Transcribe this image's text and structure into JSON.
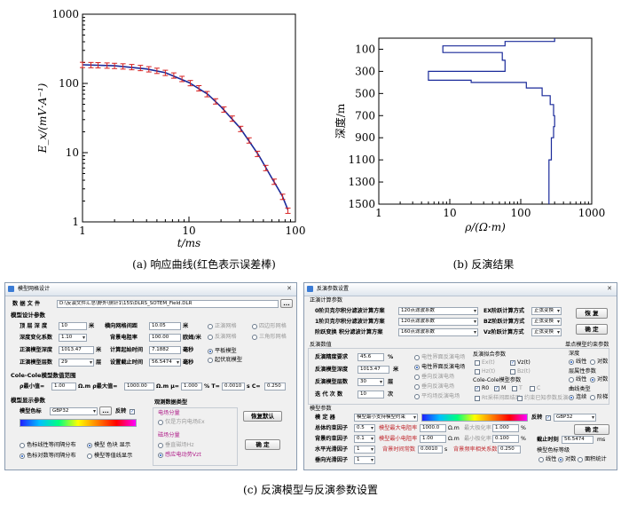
{
  "chart_data": [
    {
      "type": "scatter",
      "title": "",
      "xlabel": "t/ms",
      "ylabel": "E_x/(mV·A⁻¹)",
      "x_scale": "log",
      "y_scale": "log",
      "xlim": [
        1,
        100
      ],
      "ylim": [
        1,
        1000
      ],
      "xticks": [
        "1",
        "10",
        "100"
      ],
      "yticks": [
        "1",
        "10",
        "100",
        "1000"
      ],
      "grid": false,
      "series": [
        {
          "style": "observed data with error bars (red)",
          "x": [
            1.0,
            1.2,
            1.4,
            1.7,
            2.0,
            2.4,
            2.9,
            3.5,
            4.2,
            5.0,
            6.0,
            7.2,
            8.6,
            10.3,
            12.4,
            14.8,
            17.8,
            21.3,
            25.5,
            30.6,
            36.7,
            44.0,
            52.7,
            63.2,
            75.8,
            85.0
          ],
          "y": [
            185,
            184,
            183,
            181,
            179,
            176,
            172,
            167,
            160,
            152,
            142,
            130,
            116,
            101,
            85,
            70,
            55,
            42,
            31,
            22,
            15,
            9.6,
            6.0,
            3.8,
            2.3,
            1.45
          ]
        },
        {
          "style": "model response curve (blue)",
          "x": [
            1.0,
            2.0,
            4.0,
            6.0,
            10.0,
            15.0,
            20.0,
            30.0,
            45.0,
            60.0,
            75.0,
            85.0
          ],
          "y": [
            186,
            180,
            162,
            143,
            103,
            70,
            46,
            23,
            9.3,
            4.3,
            2.4,
            1.5
          ]
        }
      ]
    },
    {
      "type": "line",
      "title": "",
      "xlabel": "ρ/(Ω·m)",
      "ylabel": "深度/m",
      "x_scale": "log",
      "xlim": [
        1,
        1000
      ],
      "ylim": [
        1500,
        0
      ],
      "xticks": [
        "1",
        "10",
        "100",
        "1000"
      ],
      "yticks": [
        "100",
        "300",
        "500",
        "700",
        "900",
        "1100",
        "1300",
        "1500"
      ],
      "grid": false,
      "series": [
        {
          "style": "inverted resistivity profile (blue step line)",
          "x": [
            300,
            300,
            60,
            60,
            8,
            8,
            55,
            55,
            60,
            60,
            5,
            5,
            20,
            20,
            120,
            120,
            200,
            200,
            260,
            260,
            290,
            290,
            300,
            300,
            290,
            290,
            270,
            270,
            250,
            250
          ],
          "y": [
            0,
            30,
            30,
            70,
            70,
            130,
            130,
            200,
            200,
            300,
            300,
            380,
            380,
            400,
            400,
            450,
            450,
            520,
            520,
            600,
            600,
            700,
            700,
            800,
            800,
            900,
            900,
            1100,
            1100,
            1500
          ]
        }
      ]
    }
  ],
  "captions": {
    "a": "(a) 响应曲线(红色表示误差棒)",
    "b": "(b) 反演结果",
    "c": "(c) 反演模型与反演参数设置"
  },
  "left_dialog": {
    "title": "模型网格设计",
    "data_file_label": "数 据 文 件",
    "data_file_path": "D:\\反演文件汇总\\野外\\侧针1\\15S\\DLRS_SOTEM_Field.DLR",
    "browse": "...",
    "model_params_header": "模型设计参数",
    "top_depth_label": "顶 层 深 度",
    "top_depth_value": "10",
    "unit_m": "米",
    "depth_factor_label": "深度变化系数",
    "depth_factor_value": "1.10",
    "forward_depth_label": "正演模型深度",
    "forward_depth_value": "1013.47",
    "forward_layers_label": "正演模型层数",
    "forward_layers_value": "29",
    "unit_layer": "层",
    "grid_spacing_label": "横向网格间距",
    "grid_spacing_value": "10.05",
    "bg_res_label": "背景电阻率",
    "bg_res_value": "100.00",
    "unit_ohm": "欧姆/米",
    "start_time_label": "计算起始时间",
    "start_time_value": "7.1882",
    "unit_ms": "毫秒",
    "end_time_label": "设置截止时间",
    "end_time_value": "56.5474",
    "grid_opts": [
      "正演网格",
      "四边形网格",
      "反演网格",
      "三角形网格"
    ],
    "model_type_opts": [
      "平板模型",
      "起伏底模型"
    ],
    "colecole_header": "Cole-Cole模型数值范围",
    "rho_min_label": "ρ最小值=",
    "rho_min_value": "1.00",
    "rho_max_label": "Ω.m  ρ最大值=",
    "rho_max_value": "1000.00",
    "mu_label": "Ω.m  μ=",
    "mu_value": "1.000",
    "T_label": "%  T=",
    "T_value": "0.0010",
    "C_label": "s  C=",
    "C_value": "0.250",
    "display_header": "模型显示参数",
    "colormap_label": "模型色标",
    "colormap_value": "GBP32",
    "invert_label": "反转",
    "display_opts": [
      "色标线性等间隔分布",
      "模型 色块 显示",
      "色标对数等间隔分布",
      "模型等值线显示"
    ],
    "obs_header": "观测数据类型",
    "electric_label": "电场分量",
    "electric_opt": "仅是方向电场Ex",
    "magnetic_label": "磁场分量",
    "magnetic_opts": [
      "垂直磁场Hz",
      "感应电动势Vzt"
    ],
    "restore_default": "恢复默认",
    "ok": "确 定"
  },
  "right_dialog": {
    "title": "反演参数设置",
    "forward_header": "正演计算参数",
    "row0_label": "0阶贝克尔积分滤波计算方案",
    "row0_value": "120点滤波系数",
    "row1_label": "1阶贝克尔积分滤波计算方案",
    "row1_value": "120点滤波系数",
    "row2_label": "阶跃变换  积分滤波计算方案",
    "row2_value": "160点滤波系数",
    "ex_label": "EX阶跃计算方式",
    "ex_value": "正弦变换",
    "bz_label": "BZ阶跃计算方式",
    "bz_value": "正弦变换",
    "vz_label": "Vz阶跃计算方式",
    "vz_value": "正弦变换",
    "restore": "恢 复",
    "ok": "确 定",
    "inv_header": "反演数值",
    "precision_label": "反演精度要求",
    "precision_value": "45.6",
    "unit_pct": "%",
    "inv_depth_label": "反演模型深度",
    "inv_depth_value": "1013.47",
    "unit_m": "米",
    "inv_layers_label": "反演模型层数",
    "inv_layers_value": "30",
    "unit_layer": "层",
    "iter_label": "迭 代 次 数",
    "iter_value": "10",
    "unit_times": "次",
    "field_opts": [
      "电性界面反演电场",
      "电性界面反演电场",
      "垂向反演电场",
      "垂向反演电场",
      "平均场反演电场"
    ],
    "inv_params_header": "反演拟合参数",
    "inv_params_opts": [
      "Ex(t)",
      "Vz(t)",
      "Hz(t)",
      "Bz(t)"
    ],
    "colecole_header": "Cole-Cole模型参数",
    "colecole_opts": [
      "R0",
      "M",
      "T",
      "C"
    ],
    "colecole_extra": [
      "Rt采样间距结果",
      "约束已知参数反演"
    ],
    "single_point_header": "单点模型约束参数",
    "depth_label": "深度",
    "depth_opts": [
      "线性",
      "对数"
    ],
    "layer_res_label": "层属性参数",
    "layer_res_opts": [
      "线性",
      "对数"
    ],
    "curve_label": "曲线类型",
    "curve_opts": [
      "连续",
      "阶梯"
    ],
    "model_header": "模型参数",
    "model_label": "模  定  器",
    "model_type_value": "模型最小支持模型约束",
    "invert_label": "反转",
    "cmap_value": "GBP32",
    "ok2": "确  定",
    "total_label": "总体约束因子",
    "total_value": "0.5",
    "max_res_label": "模型最大电阻率",
    "max_res_value": "1000.0",
    "unit_ohm": "Ω.m",
    "max_pol_label": "最大极化率",
    "max_pol_value": "1.000",
    "bg_label": "背景约束因子",
    "bg_value": "0.1",
    "min_res_label": "模型最小电阻率",
    "min_res_value": "1.00",
    "min_pol_label": "最小极化率",
    "min_pol_value": "0.100",
    "horiz_label": "水平光滑因子",
    "horiz_value": "1",
    "bg_time_label": "背景时间常数",
    "bg_time_value": "0.0010",
    "unit_s": "s",
    "bg_freq_label": "背景频率相关系数",
    "bg_freq_value": "0.250",
    "vert_label": "垂向光滑因子",
    "vert_value": "1",
    "end_time_label": "截止时刻",
    "end_time_value": "56.5474",
    "unit_ms": "ms",
    "model_color_label": "模型色标等级",
    "model_color_opts": [
      "线性",
      "对数",
      "面积统计"
    ]
  }
}
